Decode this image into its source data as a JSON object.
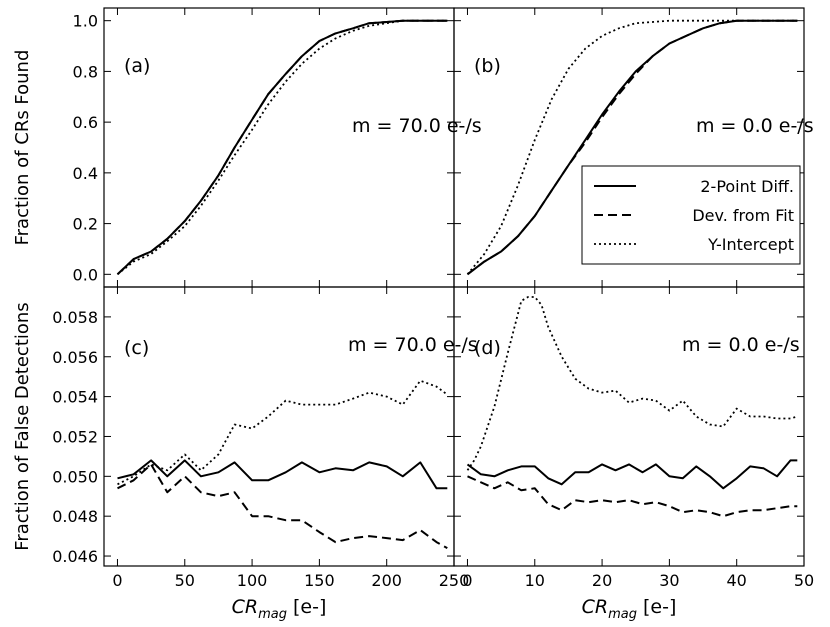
{
  "chart_data": [
    {
      "panel": "a",
      "type": "line",
      "panel_label": "(a)",
      "annotation": "m = 70.0 e-/s",
      "ylabel": "Fraction of CRs Found",
      "xlabel": "",
      "xlim": [
        -10,
        250
      ],
      "ylim": [
        -0.05,
        1.05
      ],
      "xticks": [
        0,
        50,
        100,
        150,
        200,
        250
      ],
      "yticks": [
        0.0,
        0.2,
        0.4,
        0.6,
        0.8,
        1.0
      ],
      "ytick_labels": [
        "0.0",
        "0.2",
        "0.4",
        "0.6",
        "0.8",
        "1.0"
      ],
      "series": [
        {
          "style": "solid",
          "x": [
            0,
            12,
            25,
            37,
            50,
            62,
            75,
            87,
            100,
            112,
            125,
            137,
            150,
            162,
            175,
            187,
            200,
            212,
            225,
            237,
            245
          ],
          "values": [
            0.0,
            0.06,
            0.09,
            0.14,
            0.21,
            0.29,
            0.39,
            0.5,
            0.61,
            0.71,
            0.79,
            0.86,
            0.92,
            0.95,
            0.97,
            0.99,
            0.995,
            1.0,
            1.0,
            1.0,
            1.0
          ]
        },
        {
          "style": "dashed",
          "x": [
            0,
            12,
            25,
            37,
            50,
            62,
            75,
            87,
            100,
            112,
            125,
            137,
            150,
            162,
            175,
            187,
            200,
            212,
            225,
            237,
            245
          ],
          "values": [
            0.0,
            0.06,
            0.09,
            0.14,
            0.21,
            0.29,
            0.39,
            0.5,
            0.61,
            0.71,
            0.79,
            0.86,
            0.92,
            0.95,
            0.97,
            0.99,
            0.995,
            1.0,
            1.0,
            1.0,
            1.0
          ]
        },
        {
          "style": "dotted",
          "x": [
            0,
            12,
            25,
            37,
            50,
            62,
            75,
            87,
            100,
            112,
            125,
            137,
            150,
            162,
            175,
            187,
            200,
            212,
            225,
            237,
            245
          ],
          "values": [
            0.0,
            0.05,
            0.08,
            0.13,
            0.19,
            0.27,
            0.37,
            0.47,
            0.57,
            0.67,
            0.76,
            0.83,
            0.89,
            0.93,
            0.96,
            0.98,
            0.99,
            1.0,
            1.0,
            1.0,
            1.0
          ]
        }
      ]
    },
    {
      "panel": "b",
      "type": "line",
      "panel_label": "(b)",
      "annotation": "m = 0.0 e-/s",
      "ylabel": "",
      "xlabel": "",
      "xlim": [
        -2,
        50
      ],
      "ylim": [
        -0.05,
        1.05
      ],
      "xticks": [
        0,
        10,
        20,
        30,
        40,
        50
      ],
      "yticks": [
        0.0,
        0.2,
        0.4,
        0.6,
        0.8,
        1.0
      ],
      "ytick_labels": [
        "",
        "",
        "",
        "",
        "",
        ""
      ],
      "series": [
        {
          "style": "solid",
          "x": [
            0,
            2.5,
            5,
            7.5,
            10,
            12.5,
            15,
            17.5,
            20,
            22.5,
            25,
            27.5,
            30,
            32.5,
            35,
            37.5,
            40,
            45,
            49
          ],
          "values": [
            0.0,
            0.05,
            0.09,
            0.15,
            0.23,
            0.33,
            0.43,
            0.53,
            0.63,
            0.72,
            0.8,
            0.86,
            0.91,
            0.94,
            0.97,
            0.99,
            1.0,
            1.0,
            1.0
          ]
        },
        {
          "style": "dashed",
          "x": [
            0,
            2.5,
            5,
            7.5,
            10,
            12.5,
            15,
            17.5,
            20,
            22.5,
            25,
            27.5,
            30,
            32.5,
            35,
            37.5,
            40,
            45,
            49
          ],
          "values": [
            0.0,
            0.05,
            0.09,
            0.15,
            0.23,
            0.33,
            0.43,
            0.52,
            0.62,
            0.71,
            0.79,
            0.86,
            0.91,
            0.94,
            0.97,
            0.99,
            1.0,
            1.0,
            1.0
          ]
        },
        {
          "style": "dotted",
          "x": [
            0,
            2.5,
            5,
            7.5,
            10,
            12.5,
            15,
            17.5,
            20,
            22.5,
            25,
            27.5,
            30,
            32.5,
            35,
            37.5,
            40,
            45,
            49
          ],
          "values": [
            0.0,
            0.08,
            0.19,
            0.35,
            0.53,
            0.69,
            0.81,
            0.89,
            0.94,
            0.97,
            0.99,
            0.995,
            1.0,
            1.0,
            1.0,
            1.0,
            1.0,
            1.0,
            1.0
          ]
        }
      ],
      "legend": {
        "placement": "center-right",
        "entries": [
          {
            "label": "2-Point Diff.",
            "style": "solid"
          },
          {
            "label": "Dev. from Fit",
            "style": "dashed"
          },
          {
            "label": "Y-Intercept",
            "style": "dotted"
          }
        ]
      }
    },
    {
      "panel": "c",
      "type": "line",
      "panel_label": "(c)",
      "annotation": "m = 70.0 e-/s",
      "ylabel": "Fraction of False Detections",
      "xlabel": "CRmag [e-]",
      "xlim": [
        -10,
        250
      ],
      "ylim": [
        0.0455,
        0.0595
      ],
      "xticks": [
        0,
        50,
        100,
        150,
        200,
        250
      ],
      "xtick_labels": [
        "0",
        "50",
        "100",
        "150",
        "200",
        "250"
      ],
      "yticks": [
        0.046,
        0.048,
        0.05,
        0.052,
        0.054,
        0.056,
        0.058
      ],
      "ytick_labels": [
        "0.046",
        "0.048",
        "0.050",
        "0.052",
        "0.054",
        "0.056",
        "0.058"
      ],
      "series": [
        {
          "style": "solid",
          "x": [
            0,
            12,
            25,
            37,
            50,
            62,
            75,
            87,
            100,
            112,
            125,
            137,
            150,
            162,
            175,
            187,
            200,
            212,
            225,
            237,
            245
          ],
          "values": [
            0.0499,
            0.0501,
            0.0508,
            0.05,
            0.0508,
            0.05,
            0.0502,
            0.0507,
            0.0498,
            0.0498,
            0.0502,
            0.0507,
            0.0502,
            0.0504,
            0.0503,
            0.0507,
            0.0505,
            0.05,
            0.0507,
            0.0494,
            0.0494
          ]
        },
        {
          "style": "dashed",
          "x": [
            0,
            12,
            25,
            37,
            50,
            62,
            75,
            87,
            100,
            112,
            125,
            137,
            150,
            162,
            175,
            187,
            200,
            212,
            225,
            237,
            245
          ],
          "values": [
            0.0494,
            0.0498,
            0.0506,
            0.0492,
            0.05,
            0.0492,
            0.049,
            0.0492,
            0.048,
            0.048,
            0.0478,
            0.0478,
            0.0472,
            0.0467,
            0.0469,
            0.047,
            0.0469,
            0.0468,
            0.0473,
            0.0467,
            0.0464
          ]
        },
        {
          "style": "dotted",
          "x": [
            0,
            12,
            25,
            37,
            50,
            62,
            75,
            87,
            100,
            112,
            125,
            137,
            150,
            162,
            175,
            187,
            200,
            212,
            225,
            237,
            245
          ],
          "values": [
            0.0496,
            0.05,
            0.0506,
            0.0503,
            0.0511,
            0.0503,
            0.0511,
            0.0526,
            0.0524,
            0.053,
            0.0538,
            0.0536,
            0.0536,
            0.0536,
            0.0539,
            0.0542,
            0.054,
            0.0536,
            0.0548,
            0.0545,
            0.0541
          ]
        }
      ]
    },
    {
      "panel": "d",
      "type": "line",
      "panel_label": "(d)",
      "annotation": "m = 0.0 e-/s",
      "ylabel": "",
      "xlabel": "CRmag [e-]",
      "xlim": [
        -2,
        50
      ],
      "ylim": [
        0.0455,
        0.0595
      ],
      "xticks": [
        0,
        10,
        20,
        30,
        40,
        50
      ],
      "xtick_labels": [
        "0",
        "10",
        "20",
        "30",
        "40",
        "50"
      ],
      "yticks": [
        0.046,
        0.048,
        0.05,
        0.052,
        0.054,
        0.056,
        0.058
      ],
      "ytick_labels": [
        "",
        "",
        "",
        "",
        "",
        "",
        ""
      ],
      "series": [
        {
          "style": "solid",
          "x": [
            0,
            2,
            4,
            6,
            8,
            10,
            12,
            14,
            16,
            18,
            20,
            22,
            24,
            26,
            28,
            30,
            32,
            34,
            36,
            38,
            40,
            42,
            44,
            46,
            48,
            49
          ],
          "values": [
            0.0506,
            0.0501,
            0.05,
            0.0503,
            0.0505,
            0.0505,
            0.0499,
            0.0496,
            0.0502,
            0.0502,
            0.0506,
            0.0503,
            0.0506,
            0.0502,
            0.0506,
            0.05,
            0.0499,
            0.0505,
            0.05,
            0.0494,
            0.0499,
            0.0505,
            0.0504,
            0.05,
            0.0508,
            0.0508
          ]
        },
        {
          "style": "dashed",
          "x": [
            0,
            2,
            4,
            6,
            8,
            10,
            12,
            14,
            16,
            18,
            20,
            22,
            24,
            26,
            28,
            30,
            32,
            34,
            36,
            38,
            40,
            42,
            44,
            46,
            48,
            49
          ],
          "values": [
            0.05,
            0.0497,
            0.0494,
            0.0497,
            0.0493,
            0.0494,
            0.0486,
            0.0483,
            0.0488,
            0.0487,
            0.0488,
            0.0487,
            0.0488,
            0.0486,
            0.0487,
            0.0485,
            0.0482,
            0.0483,
            0.0482,
            0.048,
            0.0482,
            0.0483,
            0.0483,
            0.0484,
            0.0485,
            0.0485
          ]
        },
        {
          "style": "dotted",
          "x": [
            0,
            1,
            2,
            4,
            6,
            8,
            9,
            10,
            11,
            12,
            14,
            16,
            18,
            20,
            22,
            24,
            26,
            28,
            30,
            32,
            34,
            36,
            38,
            40,
            42,
            44,
            46,
            48,
            49
          ],
          "values": [
            0.0503,
            0.0508,
            0.0515,
            0.0535,
            0.0562,
            0.0588,
            0.059,
            0.059,
            0.0586,
            0.0575,
            0.056,
            0.0549,
            0.0544,
            0.0542,
            0.0543,
            0.0537,
            0.0539,
            0.0538,
            0.0533,
            0.0538,
            0.053,
            0.0526,
            0.0525,
            0.0534,
            0.053,
            0.053,
            0.0529,
            0.0529,
            0.053
          ]
        }
      ]
    }
  ],
  "colors": {
    "line": "#000000",
    "background": "#ffffff"
  }
}
